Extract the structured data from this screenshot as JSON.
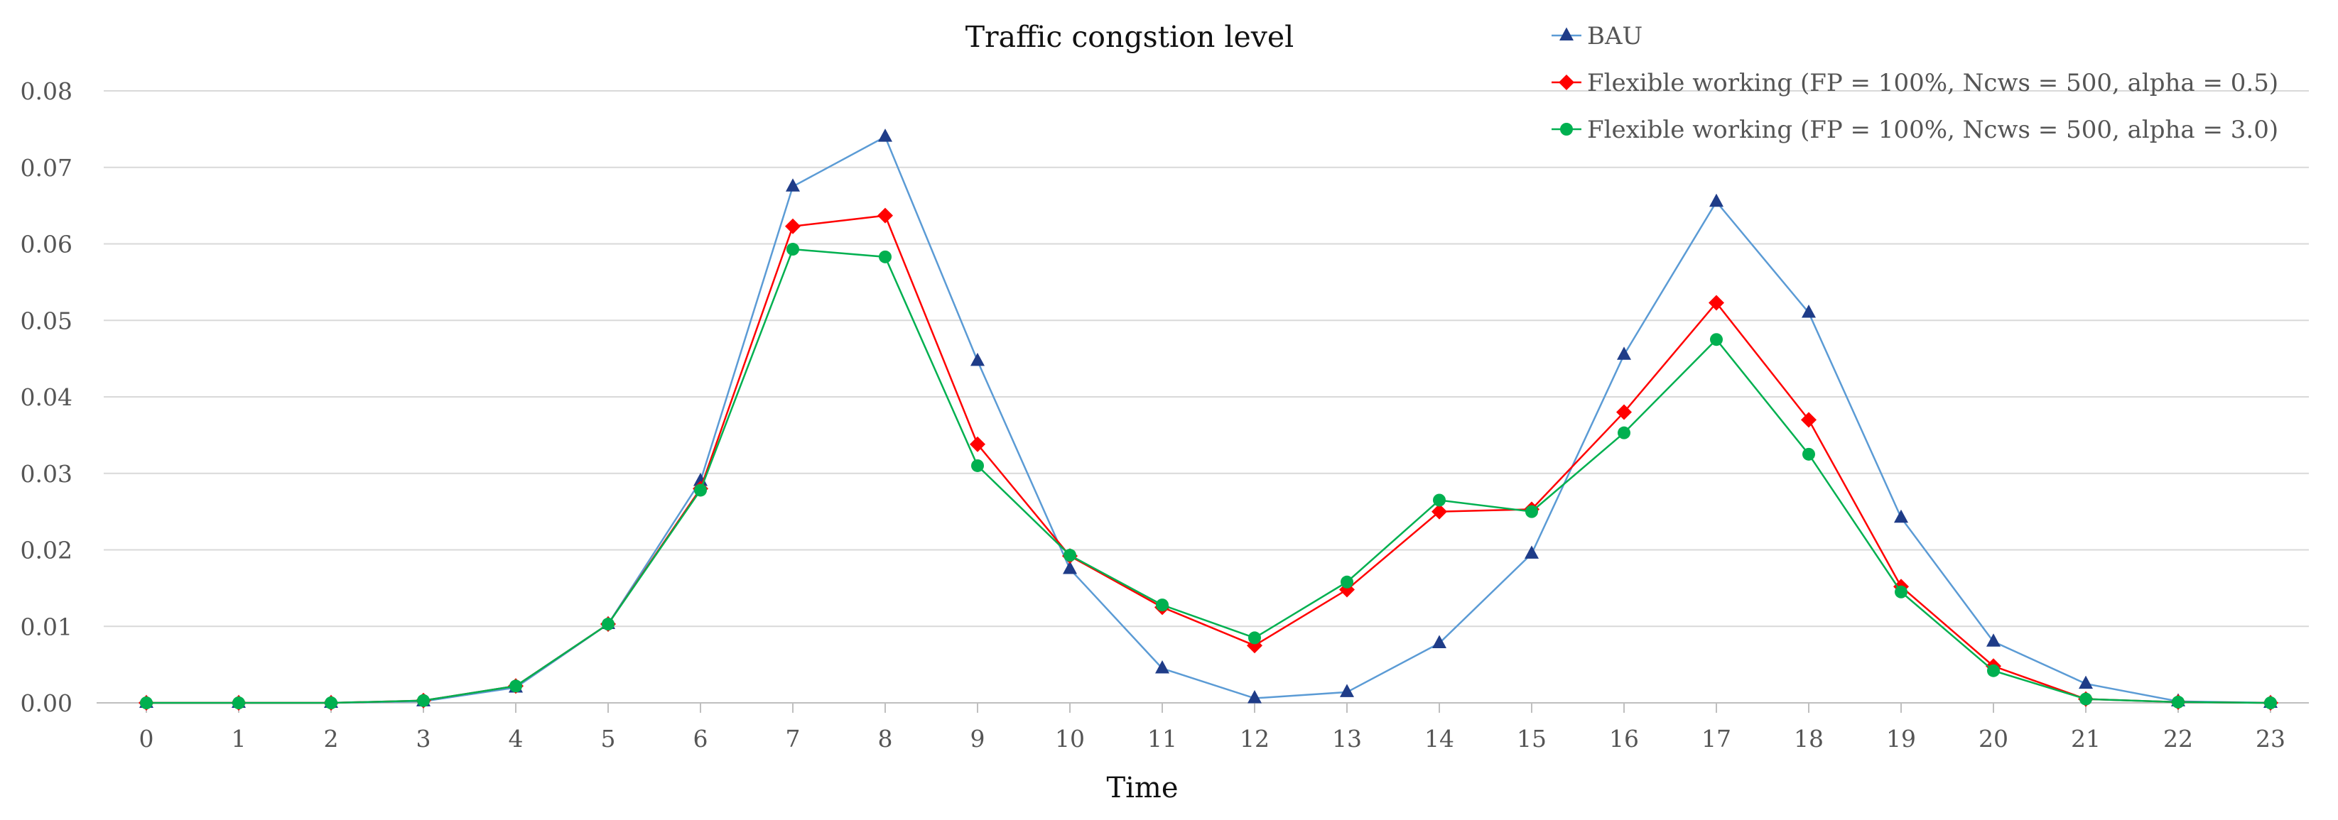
{
  "chart_data": {
    "type": "line",
    "title": "Traffic congstion level",
    "xlabel": "Time",
    "ylabel": "",
    "x": [
      0,
      1,
      2,
      3,
      4,
      5,
      6,
      7,
      8,
      9,
      10,
      11,
      12,
      13,
      14,
      15,
      16,
      17,
      18,
      19,
      20,
      21,
      22,
      23
    ],
    "ylim": [
      0,
      0.08
    ],
    "yticks": [
      "0.00",
      "0.01",
      "0.02",
      "0.03",
      "0.04",
      "0.05",
      "0.06",
      "0.07",
      "0.08"
    ],
    "grid": "horizontal",
    "legend_position": "top-right",
    "series": [
      {
        "name": "BAU",
        "color": "#5B9BD5",
        "marker_color": "#1F3C88",
        "marker": "triangle",
        "values": [
          0.0,
          0.0,
          0.0,
          0.0002,
          0.002,
          0.0103,
          0.029,
          0.0675,
          0.074,
          0.0447,
          0.0175,
          0.0045,
          0.0006,
          0.0014,
          0.0078,
          0.0195,
          0.0455,
          0.0655,
          0.051,
          0.0242,
          0.008,
          0.0025,
          0.0002,
          0.0
        ]
      },
      {
        "name": "Flexible working (FP = 100%, Ncws = 500, alpha = 0.5)",
        "color": "#FF0000",
        "marker_color": "#FF0000",
        "marker": "diamond",
        "values": [
          0.0,
          0.0,
          0.0,
          0.0003,
          0.0022,
          0.0103,
          0.028,
          0.0623,
          0.0637,
          0.0338,
          0.0192,
          0.0125,
          0.0075,
          0.0148,
          0.025,
          0.0253,
          0.038,
          0.0523,
          0.037,
          0.0152,
          0.0048,
          0.0005,
          0.0001,
          0.0
        ]
      },
      {
        "name": "Flexible working (FP = 100%, Ncws = 500, alpha = 3.0)",
        "color": "#00B050",
        "marker_color": "#00B050",
        "marker": "circle",
        "values": [
          0.0,
          0.0,
          0.0,
          0.0003,
          0.0022,
          0.0103,
          0.0278,
          0.0593,
          0.0583,
          0.031,
          0.0193,
          0.0128,
          0.0085,
          0.0158,
          0.0265,
          0.025,
          0.0353,
          0.0475,
          0.0325,
          0.0145,
          0.0042,
          0.0005,
          0.0001,
          0.0
        ]
      }
    ]
  }
}
